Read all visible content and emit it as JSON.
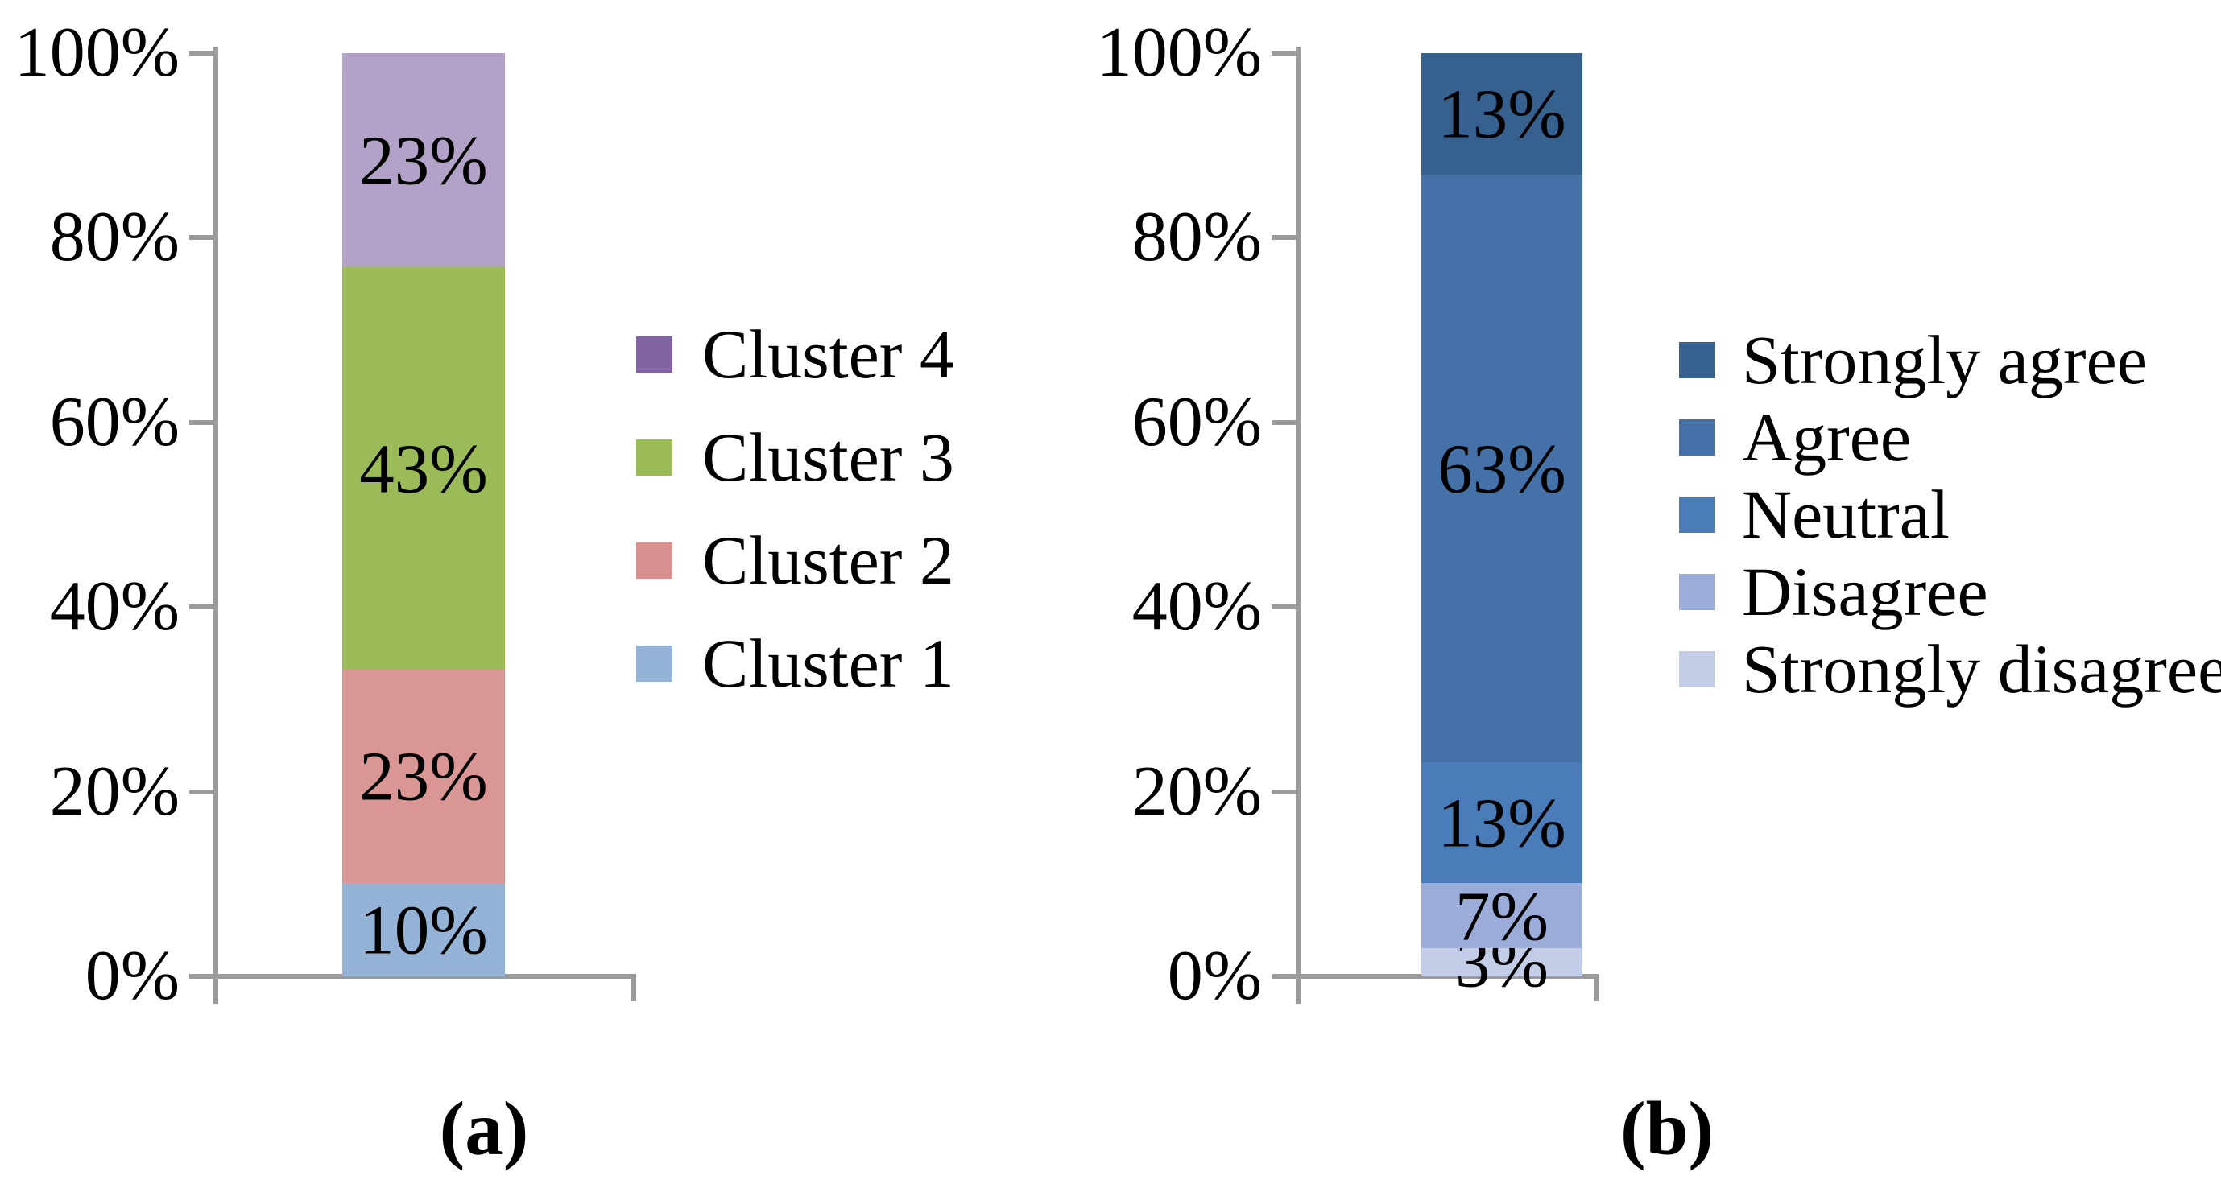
{
  "figure": {
    "background_color": "#FFFFFF",
    "axis_color": "#9B9B9B",
    "text_color": "#000000",
    "charts": [
      {
        "id": "a",
        "caption": "(a)",
        "y_ticks": [
          "100%",
          "80%",
          "60%",
          "40%",
          "20%",
          "0%"
        ],
        "legend": [
          {
            "label": "Cluster 4",
            "color": "#8064A2"
          },
          {
            "label": "Cluster 3",
            "color": "#9BBB59"
          },
          {
            "label": "Cluster 2",
            "color": "#D8918F"
          },
          {
            "label": "Cluster 1",
            "color": "#95B3D7"
          }
        ],
        "segments_bottom_up": [
          {
            "name": "Cluster 1",
            "value": 10,
            "label": "10%",
            "color": "#95B3D7"
          },
          {
            "name": "Cluster 2",
            "value": 23,
            "label": "23%",
            "color": "#D99694"
          },
          {
            "name": "Cluster 3",
            "value": 43,
            "label": "43%",
            "color": "#9BBB59"
          },
          {
            "name": "Cluster 4",
            "value": 23,
            "label": "23%",
            "color": "#B3A2C7"
          }
        ]
      },
      {
        "id": "b",
        "caption": "(b)",
        "y_ticks": [
          "100%",
          "80%",
          "60%",
          "40%",
          "20%",
          "0%"
        ],
        "legend": [
          {
            "label": "Strongly agree",
            "color": "#36618F"
          },
          {
            "label": "Agree",
            "color": "#4472A8"
          },
          {
            "label": "Neutral",
            "color": "#4A7CBA"
          },
          {
            "label": "Disagree",
            "color": "#9CACD8"
          },
          {
            "label": "Strongly disagree",
            "color": "#C4CDE7"
          }
        ],
        "segments_bottom_up": [
          {
            "name": "Strongly disagree",
            "value": 3,
            "label": "3%",
            "color": "#C4CDE7"
          },
          {
            "name": "Disagree",
            "value": 7,
            "label": "7%",
            "color": "#9CACD8"
          },
          {
            "name": "Neutral",
            "value": 13,
            "label": "13%",
            "color": "#4A7CBA"
          },
          {
            "name": "Agree",
            "value": 63,
            "label": "63%",
            "color": "#4472A8"
          },
          {
            "name": "Strongly agree",
            "value": 13,
            "label": "13%",
            "color": "#36618F"
          }
        ]
      }
    ]
  },
  "chart_data": [
    {
      "type": "bar",
      "subtype": "stacked_100_percent_column",
      "panel": "a",
      "title": "",
      "categories": [
        ""
      ],
      "series": [
        {
          "name": "Cluster 1",
          "values": [
            10
          ],
          "color": "#95B3D7"
        },
        {
          "name": "Cluster 2",
          "values": [
            23
          ],
          "color": "#D99694"
        },
        {
          "name": "Cluster 3",
          "values": [
            43
          ],
          "color": "#9BBB59"
        },
        {
          "name": "Cluster 4",
          "values": [
            23
          ],
          "color": "#B3A2C7"
        }
      ],
      "data_labels": [
        "10%",
        "23%",
        "43%",
        "23%"
      ],
      "xlabel": "",
      "ylabel": "",
      "ylim": [
        0,
        100
      ],
      "yticks": [
        "0%",
        "20%",
        "40%",
        "60%",
        "80%",
        "100%"
      ],
      "grid": false,
      "legend_position": "right",
      "legend_order_top_to_bottom": [
        "Cluster 4",
        "Cluster 3",
        "Cluster 2",
        "Cluster 1"
      ],
      "caption": "(a)"
    },
    {
      "type": "bar",
      "subtype": "stacked_100_percent_column",
      "panel": "b",
      "title": "",
      "categories": [
        ""
      ],
      "series": [
        {
          "name": "Strongly disagree",
          "values": [
            3
          ],
          "color": "#C4CDE7"
        },
        {
          "name": "Disagree",
          "values": [
            7
          ],
          "color": "#9CACD8"
        },
        {
          "name": "Neutral",
          "values": [
            13
          ],
          "color": "#4A7CBA"
        },
        {
          "name": "Agree",
          "values": [
            63
          ],
          "color": "#4472A8"
        },
        {
          "name": "Strongly agree",
          "values": [
            13
          ],
          "color": "#36618F"
        }
      ],
      "data_labels": [
        "3%",
        "7%",
        "13%",
        "63%",
        "13%"
      ],
      "xlabel": "",
      "ylabel": "",
      "ylim": [
        0,
        100
      ],
      "yticks": [
        "0%",
        "20%",
        "40%",
        "60%",
        "80%",
        "100%"
      ],
      "grid": false,
      "legend_position": "right",
      "legend_order_top_to_bottom": [
        "Strongly agree",
        "Agree",
        "Neutral",
        "Disagree",
        "Strongly disagree"
      ],
      "caption": "(b)"
    }
  ]
}
